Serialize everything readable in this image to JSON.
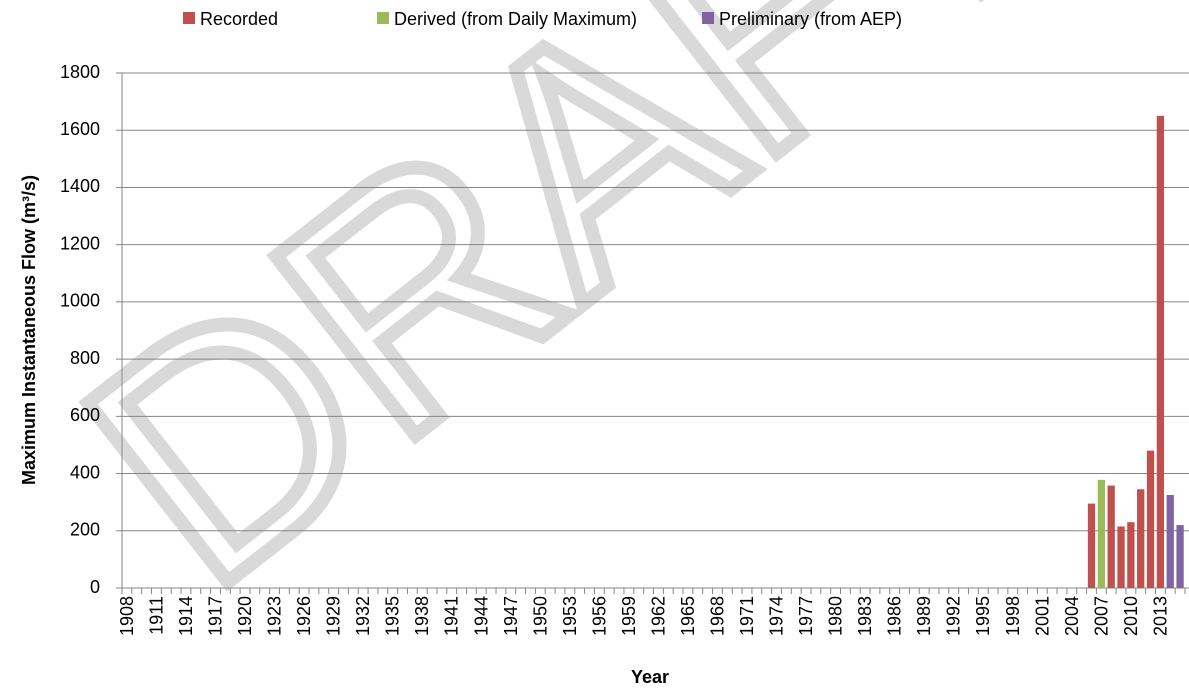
{
  "chart_data": {
    "type": "bar",
    "watermark": "DRAFT",
    "xlabel": "Year",
    "ylabel": "Maximum Instantaneous Flow (m³/s)",
    "categories": [
      "1908",
      null,
      null,
      "1911",
      null,
      null,
      "1914",
      null,
      null,
      "1917",
      null,
      null,
      "1920",
      null,
      null,
      "1923",
      null,
      null,
      "1926",
      null,
      null,
      "1929",
      null,
      null,
      "1932",
      null,
      null,
      "1935",
      null,
      null,
      "1938",
      null,
      null,
      "1941",
      null,
      null,
      "1944",
      null,
      null,
      "1947",
      null,
      null,
      "1950",
      null,
      null,
      "1953",
      null,
      null,
      "1956",
      null,
      null,
      "1959",
      null,
      null,
      "1962",
      null,
      null,
      "1965",
      null,
      null,
      "1968",
      null,
      null,
      "1971",
      null,
      null,
      "1974",
      null,
      null,
      "1977",
      null,
      null,
      "1980",
      null,
      null,
      "1983",
      null,
      null,
      "1986",
      null,
      null,
      "1989",
      null,
      null,
      "1992",
      null,
      null,
      "1995",
      null,
      null,
      "1998",
      null,
      null,
      "2001",
      null,
      null,
      "2004",
      null,
      null,
      "2007",
      null,
      null,
      "2010",
      null,
      null,
      "2013",
      null,
      null
    ],
    "series": [
      {
        "name": "Recorded",
        "color": "#c0504d",
        "values": [
          null,
          null,
          null,
          null,
          null,
          null,
          null,
          null,
          null,
          null,
          null,
          null,
          null,
          null,
          null,
          null,
          null,
          null,
          null,
          null,
          null,
          null,
          null,
          null,
          null,
          null,
          null,
          null,
          null,
          null,
          null,
          null,
          null,
          null,
          null,
          null,
          null,
          null,
          null,
          null,
          null,
          null,
          null,
          null,
          null,
          null,
          null,
          null,
          null,
          null,
          null,
          null,
          null,
          null,
          null,
          null,
          null,
          null,
          null,
          null,
          null,
          null,
          null,
          null,
          null,
          null,
          null,
          null,
          null,
          null,
          null,
          null,
          null,
          null,
          null,
          null,
          null,
          null,
          null,
          null,
          null,
          null,
          null,
          null,
          null,
          null,
          null,
          null,
          null,
          null,
          null,
          null,
          null,
          null,
          null,
          null,
          null,
          null,
          295,
          null,
          358,
          215,
          230,
          345,
          480,
          1650,
          null,
          null
        ]
      },
      {
        "name": "Derived (from Daily Maximum)",
        "color": "#9bbb59",
        "values": [
          null,
          null,
          null,
          null,
          null,
          null,
          null,
          null,
          null,
          null,
          null,
          null,
          null,
          null,
          null,
          null,
          null,
          null,
          null,
          null,
          null,
          null,
          null,
          null,
          null,
          null,
          null,
          null,
          null,
          null,
          null,
          null,
          null,
          null,
          null,
          null,
          null,
          null,
          null,
          null,
          null,
          null,
          null,
          null,
          null,
          null,
          null,
          null,
          null,
          null,
          null,
          null,
          null,
          null,
          null,
          null,
          null,
          null,
          null,
          null,
          null,
          null,
          null,
          null,
          null,
          null,
          null,
          null,
          null,
          null,
          null,
          null,
          null,
          null,
          null,
          null,
          null,
          null,
          null,
          null,
          null,
          null,
          null,
          null,
          null,
          null,
          null,
          null,
          null,
          null,
          null,
          null,
          null,
          null,
          null,
          null,
          null,
          null,
          null,
          378,
          null,
          null,
          null,
          null,
          null,
          null,
          null,
          null
        ]
      },
      {
        "name": "Preliminary (from AEP)",
        "color": "#8064a2",
        "values": [
          null,
          null,
          null,
          null,
          null,
          null,
          null,
          null,
          null,
          null,
          null,
          null,
          null,
          null,
          null,
          null,
          null,
          null,
          null,
          null,
          null,
          null,
          null,
          null,
          null,
          null,
          null,
          null,
          null,
          null,
          null,
          null,
          null,
          null,
          null,
          null,
          null,
          null,
          null,
          null,
          null,
          null,
          null,
          null,
          null,
          null,
          null,
          null,
          null,
          null,
          null,
          null,
          null,
          null,
          null,
          null,
          null,
          null,
          null,
          null,
          null,
          null,
          null,
          null,
          null,
          null,
          null,
          null,
          null,
          null,
          null,
          null,
          null,
          null,
          null,
          null,
          null,
          null,
          null,
          null,
          null,
          null,
          null,
          null,
          null,
          null,
          null,
          null,
          null,
          null,
          null,
          null,
          null,
          null,
          null,
          null,
          null,
          null,
          null,
          null,
          null,
          null,
          null,
          null,
          null,
          null,
          325,
          220
        ]
      }
    ],
    "ylim": [
      0,
      1800
    ],
    "yticks": [
      0,
      200,
      400,
      600,
      800,
      1000,
      1200,
      1400,
      1600,
      1800
    ],
    "grid": true,
    "legend": "top"
  }
}
